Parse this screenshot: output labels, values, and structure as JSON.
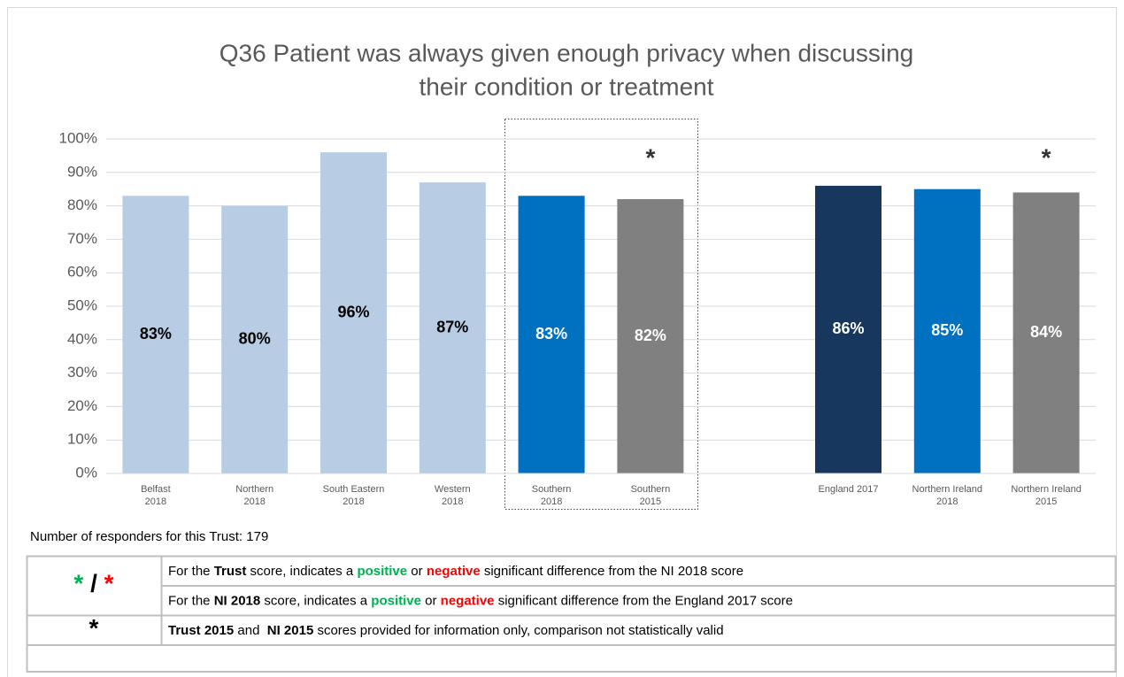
{
  "chart_data": {
    "type": "bar",
    "title": [
      "Q36 Patient was always given enough privacy when discussing",
      "their condition or treatment"
    ],
    "categories": [
      [
        "Belfast",
        "2018"
      ],
      [
        "Northern",
        "2018"
      ],
      [
        "South Eastern",
        "2018"
      ],
      [
        "Western",
        "2018"
      ],
      [
        "Southern",
        "2018"
      ],
      [
        "Southern",
        "2015"
      ],
      null,
      [
        "England 2017"
      ],
      [
        "Northern Ireland",
        "2018"
      ],
      [
        "Northern Ireland",
        "2015"
      ]
    ],
    "values": [
      83,
      80,
      96,
      87,
      83,
      82,
      null,
      86,
      85,
      84
    ],
    "value_labels": [
      "83%",
      "80%",
      "96%",
      "87%",
      "83%",
      "82%",
      null,
      "86%",
      "85%",
      "84%"
    ],
    "colors": [
      "#b8cce4",
      "#b8cce4",
      "#b8cce4",
      "#b8cce4",
      "#0070c0",
      "#808080",
      null,
      "#17375e",
      "#0070c0",
      "#808080"
    ],
    "annotations": [
      null,
      null,
      null,
      null,
      null,
      "*",
      null,
      null,
      null,
      "*"
    ],
    "ylim": [
      0,
      100
    ],
    "yticks": [
      {
        "value": 0,
        "label": "0%"
      },
      {
        "value": 10,
        "label": "10%"
      },
      {
        "value": 20,
        "label": "20%"
      },
      {
        "value": 30,
        "label": "30%"
      },
      {
        "value": 40,
        "label": "40%"
      },
      {
        "value": 50,
        "label": "50%"
      },
      {
        "value": 60,
        "label": "60%"
      },
      {
        "value": 70,
        "label": "70%"
      },
      {
        "value": 80,
        "label": "80%"
      },
      {
        "value": 90,
        "label": "90%"
      },
      {
        "value": 100,
        "label": "100%"
      }
    ],
    "grid": true
  },
  "responders": "Number of responders for this Trust: 179",
  "key": {
    "rows": [
      {
        "symbol": [
          {
            "text": "*",
            "color": "#00b050"
          },
          {
            "text": " / "
          },
          {
            "text": "*",
            "color": "#ff0000"
          }
        ],
        "lines": [
          [
            {
              "text": "For the "
            },
            {
              "text": "Trust",
              "bold": true
            },
            {
              "text": " score, indicates a "
            },
            {
              "text": "positive",
              "bold": true,
              "color": "#00b050"
            },
            {
              "text": " or "
            },
            {
              "text": "negative",
              "bold": true,
              "color": "#ff0000"
            },
            {
              "text": " significant difference from the NI 2018 score"
            }
          ],
          [
            {
              "text": "For the "
            },
            {
              "text": "NI 2018",
              "bold": true
            },
            {
              "text": " score, indicates a "
            },
            {
              "text": "positive",
              "bold": true,
              "color": "#00b050"
            },
            {
              "text": " or "
            },
            {
              "text": "negative",
              "bold": true,
              "color": "#ff0000"
            },
            {
              "text": " significant difference from the England 2017 score"
            }
          ]
        ]
      },
      {
        "symbol": [
          {
            "text": "*"
          }
        ],
        "lines": [
          [
            {
              "text": "Trust 2015",
              "bold": true
            },
            {
              "text": " and  "
            },
            {
              "text": "NI 2015",
              "bold": true
            },
            {
              "text": " scores provided for information only, comparison not statistically valid"
            }
          ]
        ]
      }
    ]
  }
}
